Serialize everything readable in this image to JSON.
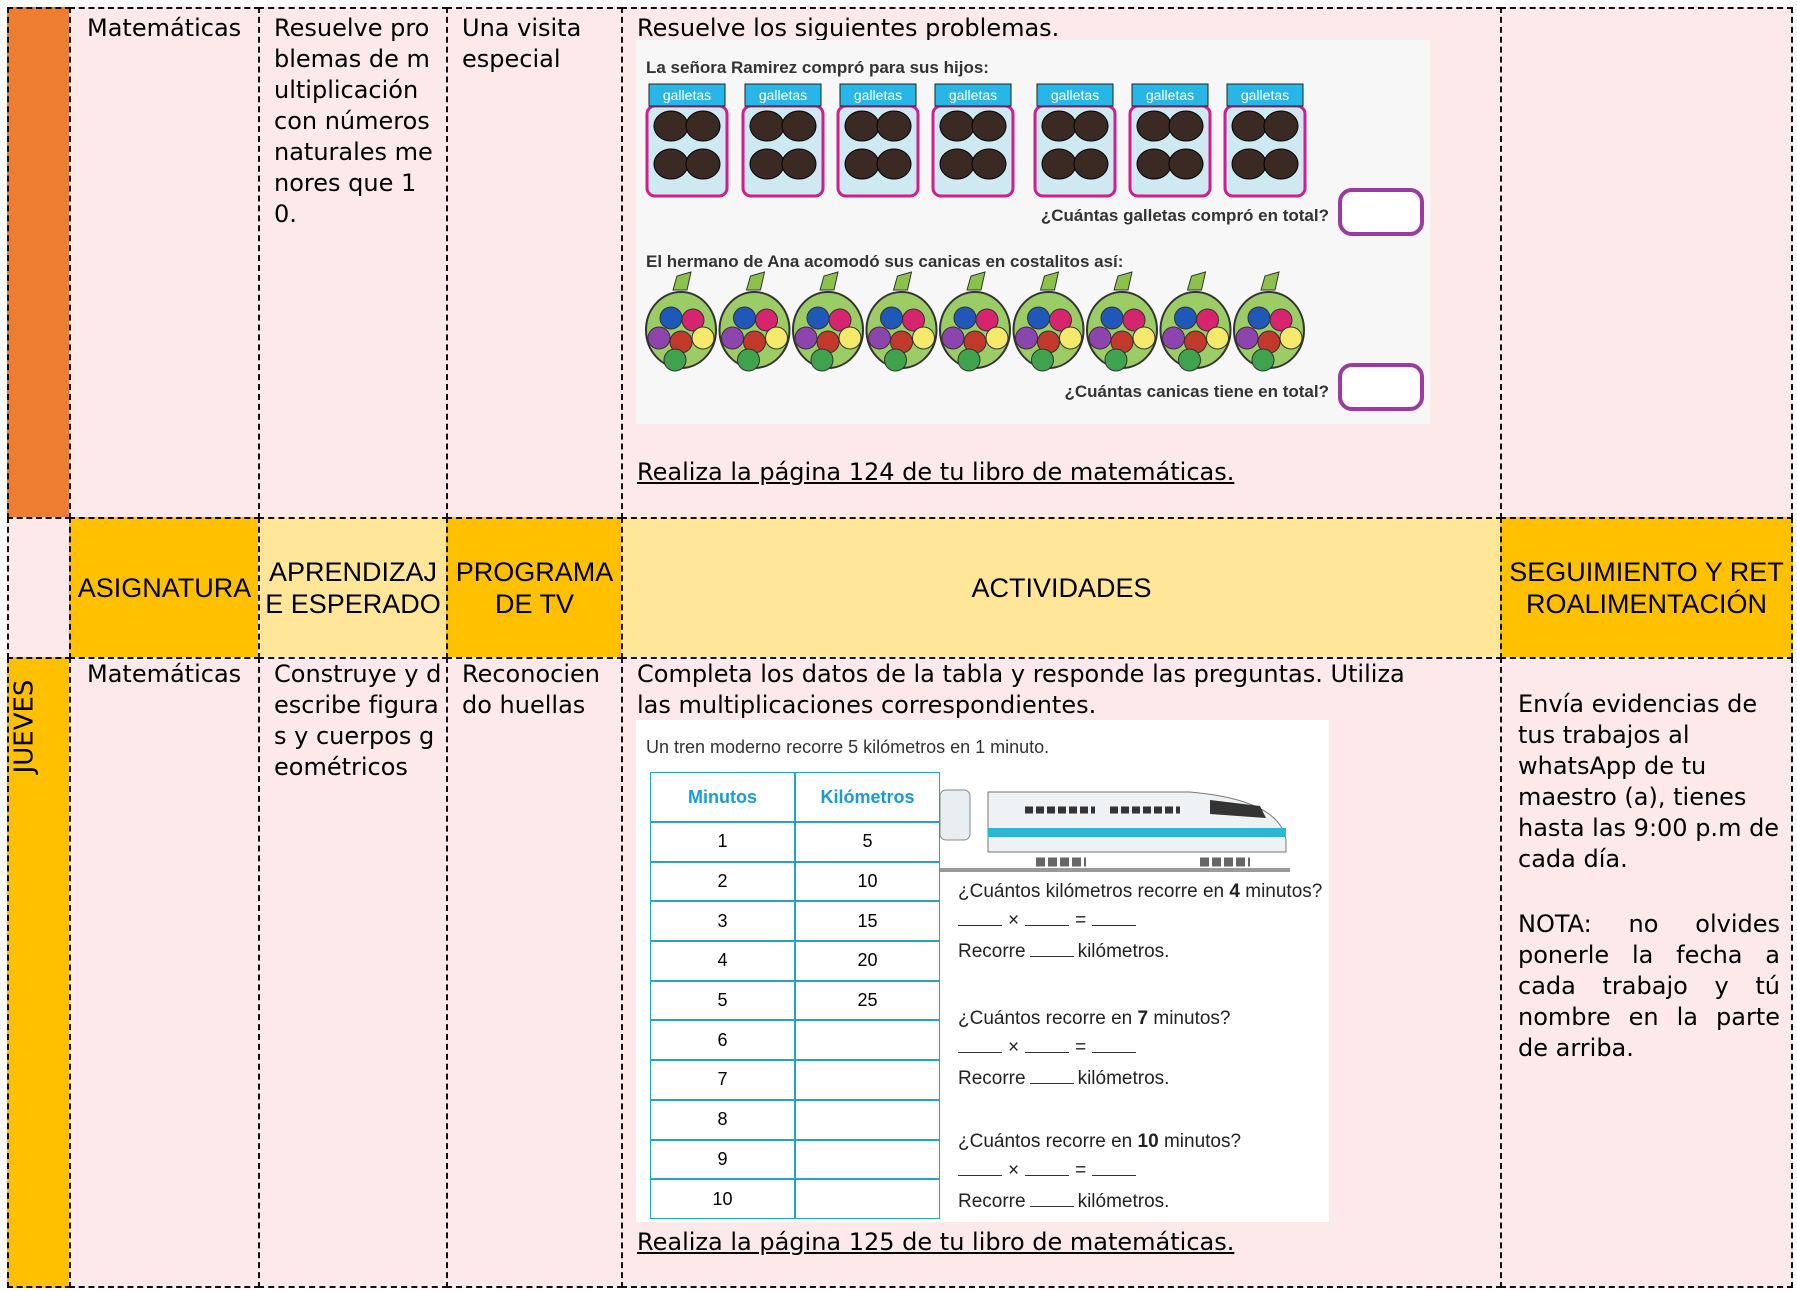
{
  "row1": {
    "subject": "Matemáticas",
    "learning": "Resuelve problemas de multiplicación con números naturales menores que 10.",
    "tv": "Una visita especial",
    "intro": "Resuelve los siguientes problemas.",
    "worksheet": {
      "title": "La señora Ramirez compró para sus hijos:",
      "jar_label": "galletas",
      "question": "¿Cuántas galletas compró en total?",
      "title2": "El hermano de Ana acomodó sus canicas en costalitos así:",
      "question2": "¿Cuántas canicas tiene en total?"
    },
    "link": "Realiza la página 124 de tu libro de matemáticas."
  },
  "header": {
    "subject": "ASIGNATURA",
    "learning": "APRENDIZAJE ESPERADO",
    "tv": "PROGRAMA DE TV",
    "activities": "ACTIVIDADES",
    "feedback": "SEGUIMIENTO Y RETROALIMENTACIÓN"
  },
  "row2": {
    "day": "JUEVES",
    "subject": "Matemáticas",
    "learning": "Construye y describe figuras y cuerpos geométricos",
    "tv": "Reconociendo huellas",
    "intro": "Completa los datos de la tabla y responde las preguntas. Utiliza las multiplicaciones correspondientes.",
    "worksheet": {
      "caption": "Un tren moderno recorre 5 kilómetros en 1 minuto.",
      "table": {
        "headers": [
          "Minutos",
          "Kilómetros"
        ],
        "minutes": [
          1,
          2,
          3,
          4,
          5,
          6,
          7,
          8,
          9,
          10
        ],
        "km": [
          5,
          10,
          15,
          20,
          25
        ]
      },
      "questions": [
        {
          "before": "¿Cuántos kilómetros recorre en ",
          "bold": "4",
          "after": " minutos?"
        },
        {
          "before": "¿Cuántos recorre en ",
          "bold": "7",
          "after": " minutos?"
        },
        {
          "before": "¿Cuántos recorre en ",
          "bold": "10",
          "after": " minutos?"
        }
      ],
      "times": "×",
      "equals": "=",
      "answer_before": "Recorre",
      "answer_after": "kilómetros."
    },
    "link": "Realiza la página 125  de tu libro de matemáticas.",
    "feedback": [
      "Envía evidencias de tus trabajos al whatsApp de tu maestro (a), tienes hasta las 9:00 p.m de cada día.",
      "NOTA: no olvides ponerle la fecha a cada trabajo y tú nombre en la parte de arriba."
    ]
  }
}
